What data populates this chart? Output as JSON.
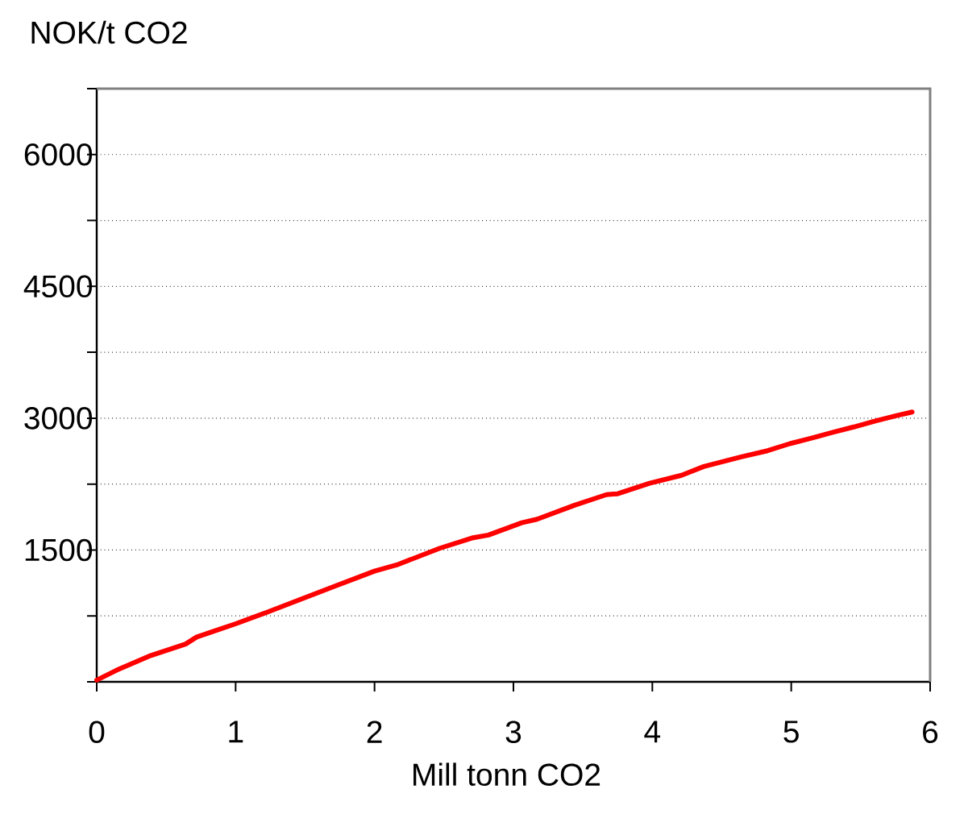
{
  "chart_data": {
    "type": "line",
    "xlabel": "Mill tonn CO2",
    "ylabel": "NOK/t CO2",
    "x": [
      0.0,
      0.14,
      0.39,
      0.64,
      0.72,
      1.0,
      1.24,
      1.47,
      1.7,
      2.0,
      2.16,
      2.47,
      2.71,
      2.82,
      3.06,
      3.17,
      3.44,
      3.67,
      3.75,
      3.98,
      4.21,
      4.37,
      4.64,
      4.83,
      4.99,
      5.14,
      5.3,
      5.45,
      5.61,
      5.76,
      5.87
    ],
    "values": [
      20,
      130,
      300,
      430,
      510,
      660,
      800,
      940,
      1080,
      1260,
      1330,
      1520,
      1640,
      1670,
      1810,
      1850,
      2010,
      2130,
      2140,
      2260,
      2350,
      2450,
      2560,
      2630,
      2710,
      2770,
      2840,
      2900,
      2970,
      3030,
      3070
    ],
    "color": "#ff0000",
    "xlim": [
      0,
      6
    ],
    "ylim": [
      0,
      6750
    ],
    "xticks": [
      0,
      1,
      2,
      3,
      4,
      5,
      6
    ],
    "yticks": [
      {
        "value": 0,
        "label": null
      },
      {
        "value": 750,
        "label": null
      },
      1500,
      {
        "value": 2250,
        "label": null
      },
      3000,
      {
        "value": 3750,
        "label": null
      },
      4500,
      {
        "value": 5250,
        "label": null
      },
      6000,
      {
        "value": 6750,
        "label": null
      }
    ],
    "grid": "y"
  }
}
